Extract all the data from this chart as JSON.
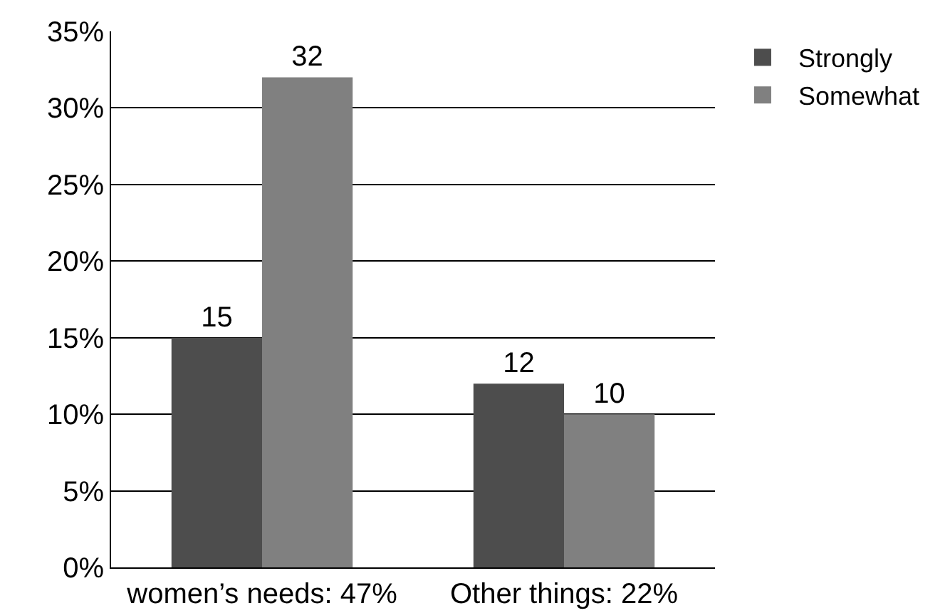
{
  "chart_data": {
    "type": "bar",
    "categories": [
      "women’s needs: 47%",
      "Other things: 22%"
    ],
    "series": [
      {
        "name": "Strongly",
        "color": "#4d4d4d",
        "values": [
          15,
          12
        ]
      },
      {
        "name": "Somewhat",
        "color": "#808080",
        "values": [
          32,
          10
        ]
      }
    ],
    "ylim": [
      0,
      35
    ],
    "yticks": [
      {
        "value": 0,
        "label": "0%"
      },
      {
        "value": 5,
        "label": "5%"
      },
      {
        "value": 10,
        "label": "10%"
      },
      {
        "value": 15,
        "label": "15%"
      },
      {
        "value": 20,
        "label": "20%"
      },
      {
        "value": 25,
        "label": "25%"
      },
      {
        "value": 30,
        "label": "30%"
      },
      {
        "value": 35,
        "label": "35%"
      }
    ],
    "grid": "y",
    "legend": "top right",
    "data_labels": true
  }
}
